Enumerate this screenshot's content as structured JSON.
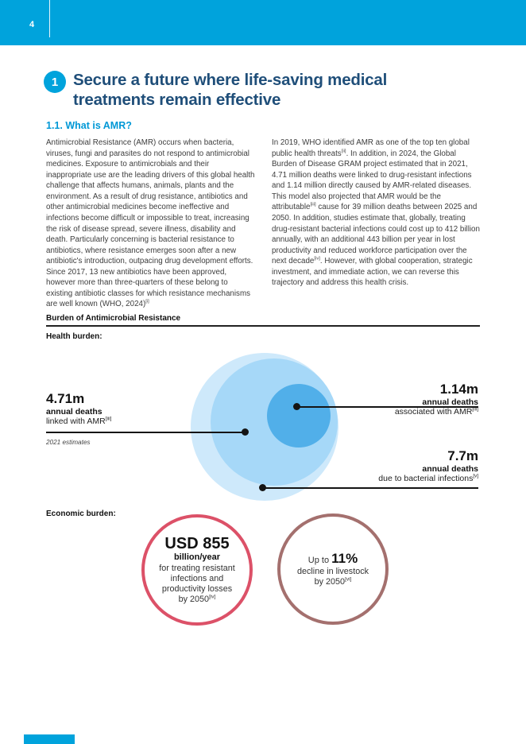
{
  "header": {
    "page_number": "4"
  },
  "chapter": {
    "number": "1",
    "title_lines": [
      "Secure a future where life-saving medical",
      "treatments remain effective"
    ]
  },
  "section": {
    "heading": "1.1. What is AMR?"
  },
  "body": {
    "left_column": [
      {
        "t": "Antimicrobial Resistance (AMR) occurs when bacteria, viruses, fungi and parasites do not respond to antimicrobial medicines. Exposure to antimicrobials and their inappropriate use are the leading drivers of this global health challenge that affects humans, animals, plants and the environment. As a result of drug resistance, antibiotics and other antimicrobial medicines become ineffective and infections become difficult or impossible to treat, increasing the risk of disease spread, severe illness, disability and death. Particularly concerning is bacterial resistance to antibiotics, where resistance emerges soon after a new antibiotic's introduction, outpacing drug development efforts. Since 2017, 13 new antibiotics have been approved, however more than three-quarters of these belong to existing antibiotic classes for which resistance mechanisms are well known (WHO, 2024)"
      },
      {
        "s": "[i]"
      }
    ],
    "right_column": [
      {
        "t": "In 2019, WHO identified AMR as one of the top ten global public health threats"
      },
      {
        "s": "[ii]"
      },
      {
        "t": ". In addition, in 2024, the Global Burden of Disease GRAM project estimated that in 2021, 4.71 million deaths were linked to drug-resistant infections and 1.14 million directly caused by AMR-related diseases. This model also projected that AMR would be the attributable"
      },
      {
        "s": "[iii]"
      },
      {
        "t": " cause for 39 million deaths between 2025 and 2050. In addition, studies estimate that, globally, treating drug-resistant bacterial infections could cost up to 412 billion annually, with an additional 443 billion per year in lost productivity and reduced workforce participation over the next decade"
      },
      {
        "s": "[iv]"
      },
      {
        "t": ". However, with global cooperation, strategic investment, and immediate action, we can reverse this trajectory and address this health crisis."
      }
    ]
  },
  "figure": {
    "heading": "Burden of Antimicrobial Resistance",
    "health_label": "Health burden:",
    "economic_label": "Economic burden:",
    "note": "2021 estimates",
    "health": {
      "linked": {
        "value": "4.71m",
        "label": "annual deaths",
        "desc": [
          {
            "t": "linked with AMR"
          },
          {
            "s": "[iii]"
          }
        ]
      },
      "associated": {
        "value": "1.14m",
        "label": "annual deaths",
        "desc": [
          {
            "t": "associated with AMR"
          },
          {
            "s": "[iii]"
          }
        ]
      },
      "bacterial": {
        "value": "7.7m",
        "label": "annual deaths",
        "desc": [
          {
            "t": "due to bacterial infections"
          },
          {
            "s": "[v]"
          }
        ]
      }
    },
    "econ1": {
      "value": "USD 855",
      "unit": "billion/year",
      "lines": [
        "for treating resistant",
        "infections and",
        "productivity losses"
      ],
      "last_line": [
        {
          "t": "by 2050"
        },
        {
          "s": "[iv]"
        }
      ]
    },
    "econ2": {
      "prefix": "Up to ",
      "value": "11%",
      "lines": [
        "decline in livestock"
      ],
      "last_line": [
        {
          "t": "by 2050"
        },
        {
          "s": "[vi]"
        }
      ]
    }
  },
  "colors": {
    "accent_cyan": "#00A3DC",
    "title_navy": "#1F4E79",
    "section_cyan": "#0098D6",
    "bubble_outer": "#CEE9FB",
    "bubble_middle": "#A6D8F8",
    "bubble_inner": "#51AFE9",
    "econ_circle1_border": "#DC5168",
    "econ_circle2_border": "#A4706E"
  }
}
